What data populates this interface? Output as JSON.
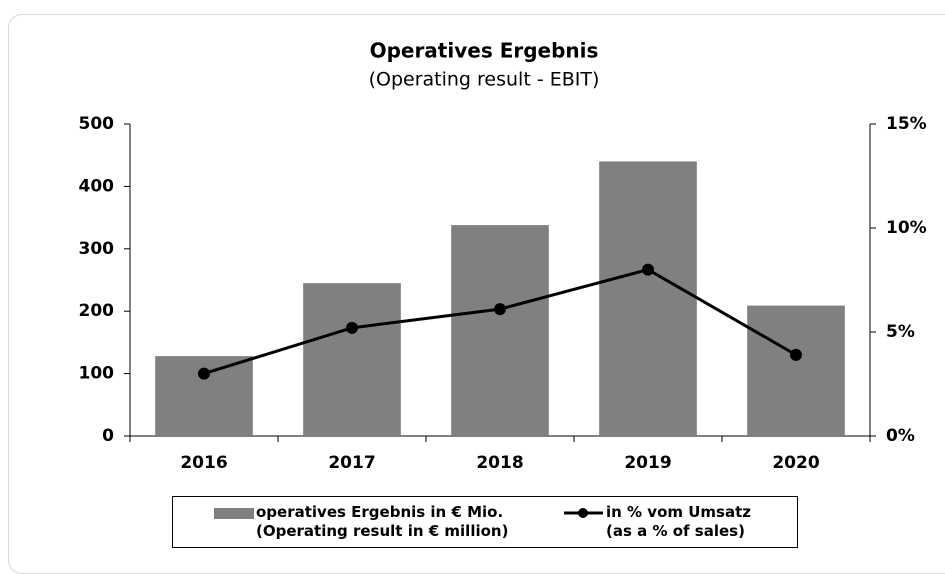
{
  "chart_data": {
    "type": "bar",
    "title": "Operatives Ergebnis",
    "subtitle": "(Operating result - EBIT)",
    "categories": [
      "2016",
      "2017",
      "2018",
      "2019",
      "2020"
    ],
    "series": [
      {
        "name": "operatives Ergebnis in € Mio.\n(Operating result in € million)",
        "type": "bar",
        "color": "#808080",
        "values": [
          128,
          245,
          338,
          440,
          209
        ]
      },
      {
        "name": "in % vom Umsatz\n(as a % of sales)",
        "type": "line",
        "axis": "y2",
        "color": "#000000",
        "values": [
          3.0,
          5.2,
          6.1,
          8.0,
          3.9
        ]
      }
    ],
    "ylim": [
      0,
      500
    ],
    "yticks": [
      0,
      100,
      200,
      300,
      400,
      500
    ],
    "y2lim": [
      0,
      15
    ],
    "y2ticks": [
      {
        "value": 0,
        "label": "0%"
      },
      {
        "value": 5,
        "label": "5%"
      },
      {
        "value": 10,
        "label": "10%"
      },
      {
        "value": 15,
        "label": "15%"
      }
    ],
    "grid": false,
    "legend": "bottom"
  }
}
